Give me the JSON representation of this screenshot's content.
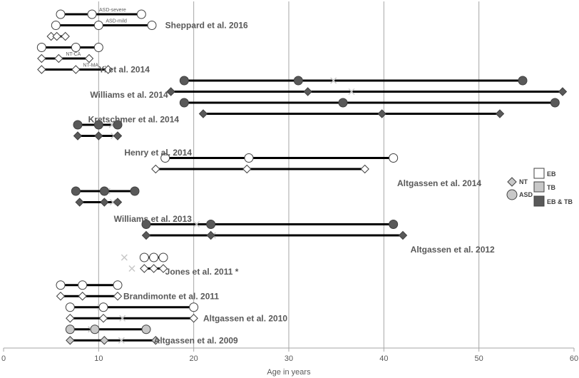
{
  "chart_data": {
    "type": "scatter",
    "title": "",
    "xlabel": "Age in years",
    "ylabel": "",
    "xlim": [
      0,
      60
    ],
    "x_ticks": [
      0,
      10,
      20,
      30,
      40,
      50,
      60
    ],
    "x_tick_labels": [
      "0",
      "10",
      "20",
      "30",
      "40",
      "50",
      "60"
    ],
    "vertical_gridlines_at": [
      10,
      20,
      30,
      40,
      50
    ],
    "colors": {
      "EB": "#ffffff",
      "TB": "#c8c8c8",
      "EB_TB": "#595959",
      "line": "#000000",
      "mean_marker": "#c8c8c8",
      "text": "#595959",
      "grid": "#a6a6a6"
    },
    "legend": {
      "position": "right",
      "items": [
        {
          "symbol": "diamond",
          "label": "NT"
        },
        {
          "symbol": "circle",
          "label": "ASD"
        },
        {
          "symbol": "square",
          "fill": "EB",
          "label": "EB"
        },
        {
          "symbol": "square",
          "fill": "TB",
          "label": "TB"
        },
        {
          "symbol": "square",
          "fill": "EB_TB",
          "label": "EB & TB"
        }
      ]
    },
    "studies": [
      {
        "label": "Sheppard et al. 2016",
        "label_x": 17,
        "label_row": 1
      },
      {
        "label": "Yi et al. 2014",
        "label_x": 10,
        "label_row": 5
      },
      {
        "label": "Williams et al. 2014",
        "label_x": 9.1,
        "label_row": 7.3
      },
      {
        "label": "Kretschmer et al. 2014",
        "label_x": 8.9,
        "label_row": 9.5
      },
      {
        "label": "Henry et al. 2014",
        "label_x": 12.7,
        "label_row": 12.5
      },
      {
        "label": "Altgassen et al. 2014",
        "label_x": 41.4,
        "label_row": 15.3
      },
      {
        "label": "Williams et al. 2013",
        "label_x": 11.6,
        "label_row": 18.5
      },
      {
        "label": "Altgassen et al. 2012",
        "label_x": 42.8,
        "label_row": 21.3
      },
      {
        "label": "Jones et al. 2011 *",
        "label_x": 17,
        "label_row": 23.3
      },
      {
        "label": "Brandimonte et al. 2011",
        "label_x": 12.6,
        "label_row": 25.5
      },
      {
        "label": "Altgassen et al. 2010",
        "label_x": 21,
        "label_row": 27.5
      },
      {
        "label": "Altgassen et al. 2009",
        "label_x": 15.8,
        "label_row": 29.5
      }
    ],
    "series": [
      {
        "row": 0,
        "group": "ASD",
        "paradigm": "EB",
        "subgroup": "ASD-severe",
        "min": 6,
        "mean": 9.3,
        "max": 14.5
      },
      {
        "row": 1,
        "group": "ASD",
        "paradigm": "EB",
        "subgroup": "ASD-mild",
        "min": 5.5,
        "mean": 10,
        "max": 15.6
      },
      {
        "row": 2,
        "group": "NT",
        "paradigm": "EB",
        "min": 5,
        "mean": 5.6,
        "max": 6.5
      },
      {
        "row": 3,
        "group": "ASD",
        "paradigm": "EB",
        "min": 4,
        "mean": 7.6,
        "max": 10
      },
      {
        "row": 4,
        "group": "NT",
        "paradigm": "EB",
        "subgroup": "NT-CA",
        "min": 4,
        "mean": 5.8,
        "max": 9
      },
      {
        "row": 5,
        "group": "NT",
        "paradigm": "EB",
        "subgroup": "NT-MA",
        "min": 4,
        "mean": 7.6,
        "max": 11
      },
      {
        "row": 6,
        "group": "ASD",
        "paradigm": "EB_TB",
        "min": 19,
        "mean": 31,
        "max": 54.6,
        "marker_x": 34.7
      },
      {
        "row": 7,
        "group": "NT",
        "paradigm": "EB_TB",
        "min": 17.6,
        "mean": 32,
        "max": 58.8,
        "marker_x": 36.6
      },
      {
        "row": 8,
        "group": "ASD",
        "paradigm": "EB_TB",
        "min": 19,
        "mean": 35.7,
        "max": 58
      },
      {
        "row": 9,
        "group": "NT",
        "paradigm": "EB_TB",
        "min": 21,
        "mean": 39.8,
        "max": 52.2
      },
      {
        "row": 10,
        "group": "ASD",
        "paradigm": "EB_TB",
        "min": 7.8,
        "mean": 10,
        "max": 12,
        "marker_x": 11.4
      },
      {
        "row": 11,
        "group": "NT",
        "paradigm": "EB_TB",
        "min": 7.8,
        "mean": 10,
        "max": 12,
        "marker_x": 11.6
      },
      {
        "row": 13,
        "group": "ASD",
        "paradigm": "EB",
        "min": 17,
        "mean": 25.8,
        "max": 41
      },
      {
        "row": 14,
        "group": "NT",
        "paradigm": "EB",
        "min": 16,
        "mean": 25.6,
        "max": 38
      },
      {
        "row": 16,
        "group": "ASD",
        "paradigm": "EB_TB",
        "min": 7.6,
        "mean": 10.6,
        "max": 13.8,
        "marker_x": 10.9
      },
      {
        "row": 17,
        "group": "NT",
        "paradigm": "EB_TB",
        "min": 8,
        "mean": 10.6,
        "max": 12,
        "marker_x": 11.5
      },
      {
        "row": 19,
        "group": "ASD",
        "paradigm": "EB_TB",
        "min": 15,
        "mean": 21.8,
        "max": 41,
        "marker_x": 20.3
      },
      {
        "row": 20,
        "group": "NT",
        "paradigm": "EB_TB",
        "min": 15,
        "mean": 21.8,
        "max": 42,
        "marker_x": 22
      },
      {
        "row": 22,
        "group": "ASD",
        "paradigm": "EB",
        "min": 14.8,
        "mean": 15.8,
        "max": 16.8,
        "marker_x": 12.7
      },
      {
        "row": 23,
        "group": "NT",
        "paradigm": "EB",
        "min": 14.8,
        "mean": 15.8,
        "max": 16.8,
        "marker_x": 13.5
      },
      {
        "row": 24.5,
        "group": "ASD",
        "paradigm": "EB",
        "min": 6,
        "mean": 8.3,
        "max": 12
      },
      {
        "row": 25.5,
        "group": "NT",
        "paradigm": "EB",
        "min": 6,
        "mean": 8.3,
        "max": 12
      },
      {
        "row": 26.5,
        "group": "ASD",
        "paradigm": "EB",
        "min": 7,
        "mean": 10.5,
        "max": 20,
        "marker_x": 10.2
      },
      {
        "row": 27.5,
        "group": "NT",
        "paradigm": "EB",
        "min": 7,
        "mean": 10.5,
        "max": 20,
        "marker_x": 12.5
      },
      {
        "row": 28.5,
        "group": "ASD",
        "paradigm": "TB",
        "min": 7,
        "mean": 9.6,
        "max": 15,
        "marker_x": 9.2
      },
      {
        "row": 29.5,
        "group": "NT",
        "paradigm": "TB",
        "min": 7,
        "mean": 10.6,
        "max": 16,
        "marker_x": 12.4
      }
    ]
  }
}
